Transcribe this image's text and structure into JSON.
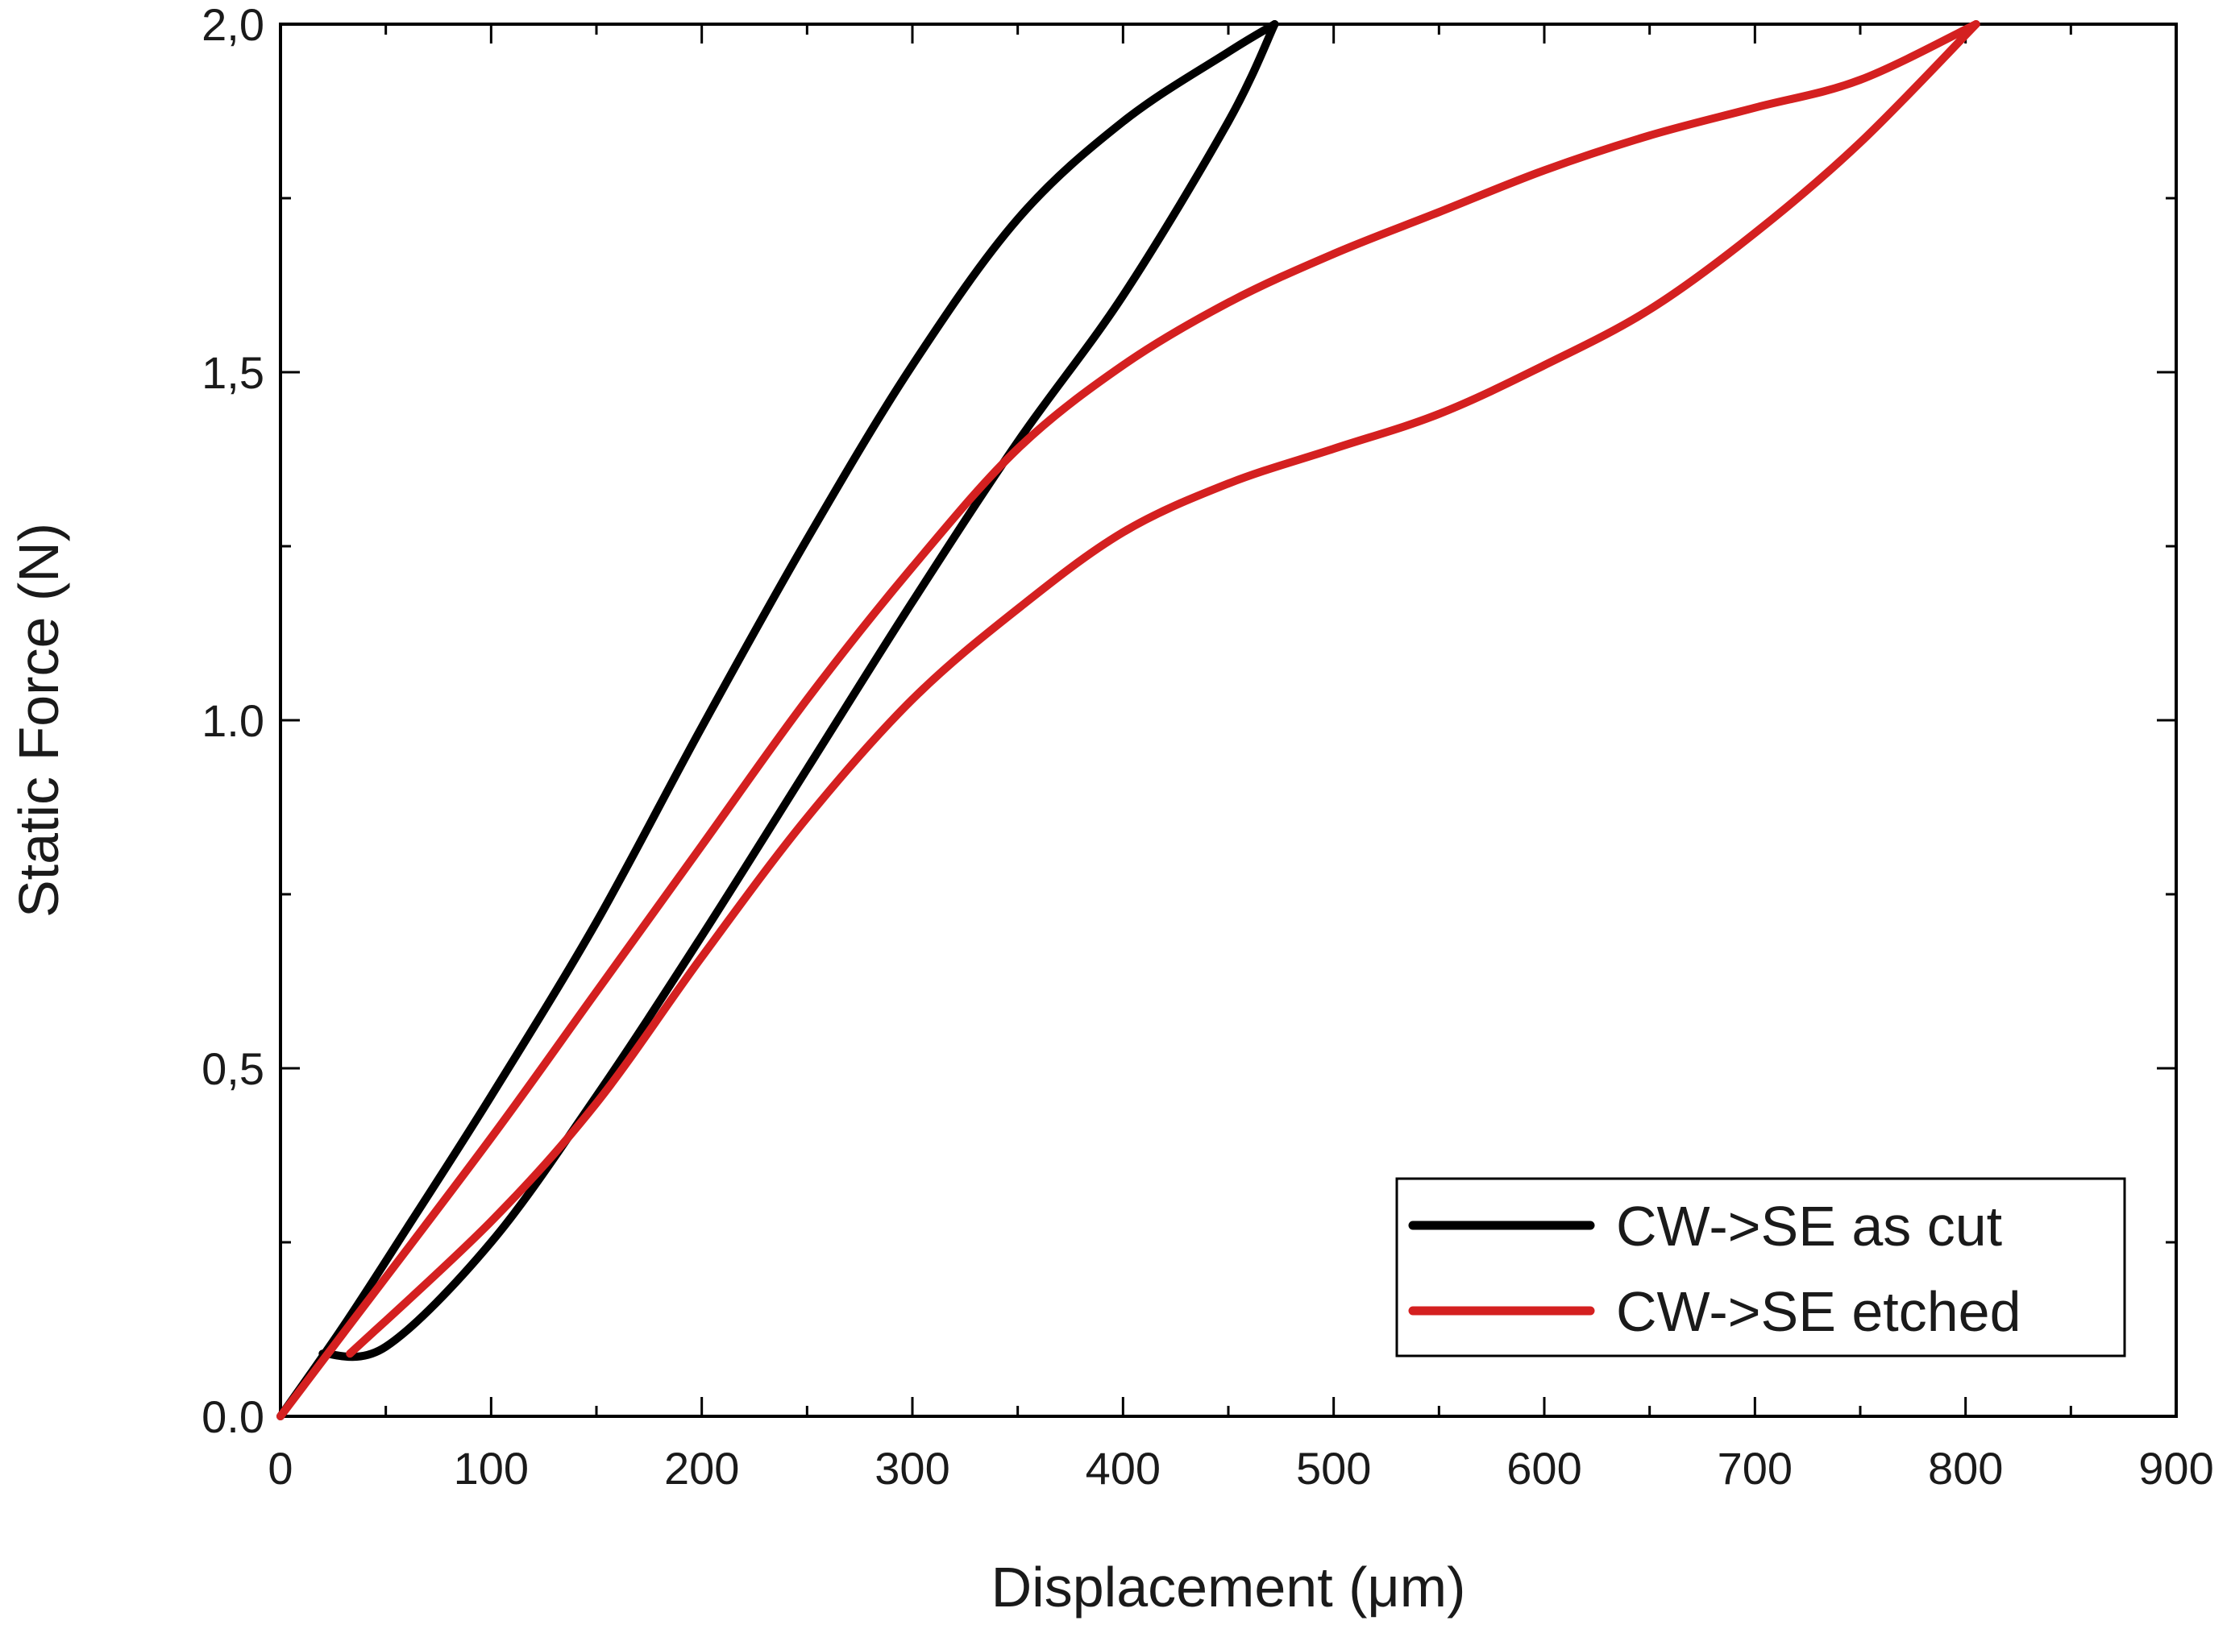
{
  "chart_data": {
    "type": "line",
    "title": "",
    "xlabel": "Displacement (μm)",
    "ylabel": "Static Force (N)",
    "xlim": [
      0,
      900
    ],
    "ylim": [
      0,
      2.0
    ],
    "x_ticks": [
      0,
      100,
      200,
      300,
      400,
      500,
      600,
      700,
      800,
      900
    ],
    "x_tick_labels": [
      "0",
      "100",
      "200",
      "300",
      "400",
      "500",
      "600",
      "700",
      "800",
      "900"
    ],
    "y_ticks": [
      0,
      0.5,
      1.0,
      1.5,
      2.0
    ],
    "y_tick_labels": [
      "0.0",
      "0,5",
      "1.0",
      "1,5",
      "2,0"
    ],
    "grid": false,
    "legend_position": "bottom-right",
    "series": [
      {
        "name": "CW->SE as cut",
        "color": "#000000",
        "loading": {
          "x": [
            0,
            30,
            60,
            100,
            150,
            200,
            250,
            300,
            350,
            400,
            450,
            472
          ],
          "y": [
            0,
            0.13,
            0.27,
            0.46,
            0.71,
            0.99,
            1.26,
            1.51,
            1.72,
            1.86,
            1.96,
            2.0
          ]
        },
        "unloading": {
          "x": [
            472,
            450,
            400,
            350,
            300,
            250,
            200,
            150,
            100,
            50,
            20
          ],
          "y": [
            2.0,
            1.86,
            1.61,
            1.4,
            1.17,
            0.93,
            0.69,
            0.46,
            0.25,
            0.1,
            0.09
          ]
        }
      },
      {
        "name": "CW->SE etched",
        "color": "#d42020",
        "loading": {
          "x": [
            0,
            30,
            100,
            150,
            200,
            250,
            300,
            350,
            400,
            450,
            500,
            550,
            600,
            650,
            700,
            750,
            805
          ],
          "y": [
            0,
            0.12,
            0.4,
            0.61,
            0.82,
            1.03,
            1.22,
            1.39,
            1.51,
            1.6,
            1.67,
            1.73,
            1.79,
            1.84,
            1.88,
            1.92,
            2.0
          ]
        },
        "unloading": {
          "x": [
            805,
            750,
            700,
            650,
            600,
            550,
            500,
            450,
            400,
            350,
            300,
            250,
            200,
            150,
            100,
            33
          ],
          "y": [
            2.0,
            1.83,
            1.7,
            1.59,
            1.51,
            1.44,
            1.39,
            1.34,
            1.27,
            1.16,
            1.03,
            0.86,
            0.66,
            0.45,
            0.28,
            0.09
          ]
        }
      }
    ]
  }
}
